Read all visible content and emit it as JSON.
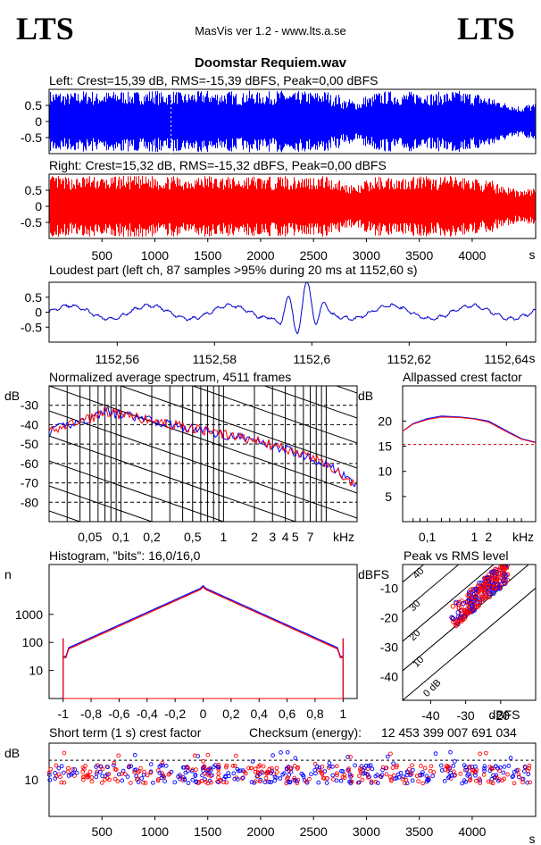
{
  "header": {
    "brand_left": "LTS",
    "brand_right": "LTS",
    "app_title": "MasVis ver 1.2 - www.lts.a.se",
    "file_name": "Doomstar Requiem.wav"
  },
  "chart_data": [
    {
      "id": "left-waveform",
      "type": "area",
      "title": "Left: Crest=15,39 dB, RMS=-15,39 dBFS, Peak=0,00 dBFS",
      "color": "#0000ff",
      "ylim": [
        -1,
        1
      ],
      "yticks": [
        "0.5",
        "0",
        "-0.5"
      ],
      "xlim": [
        0,
        4600
      ],
      "marker_x": 1152.6,
      "envelope": [
        0.95,
        0.9,
        0.92,
        0.96,
        0.9,
        0.94,
        0.97,
        0.93,
        0.95,
        0.98,
        0.92,
        0.96,
        0.9,
        0.94,
        0.97,
        0.93,
        0.95,
        0.9,
        0.96,
        0.92,
        0.94,
        0.97,
        0.9,
        0.95,
        0.93,
        0.96,
        0.85,
        0.7,
        0.65,
        0.8,
        0.92,
        0.95,
        0.9,
        0.94,
        0.97,
        0.9,
        0.93,
        0.96,
        0.92,
        0.88,
        0.8,
        0.7,
        0.6,
        0.5,
        0.55
      ]
    },
    {
      "id": "right-waveform",
      "type": "area",
      "title": "Right: Crest=15,32 dB, RMS=-15,32 dBFS, Peak=0,00 dBFS",
      "color": "#ff0000",
      "ylim": [
        -1,
        1
      ],
      "yticks": [
        "0.5",
        "0",
        "-0.5"
      ],
      "xlim": [
        0,
        4600
      ],
      "xticks": [
        "500",
        "1000",
        "1500",
        "2000",
        "2500",
        "3000",
        "3500",
        "4000"
      ],
      "xtick_values": [
        500,
        1000,
        1500,
        2000,
        2500,
        3000,
        3500,
        4000
      ],
      "xunit": "s",
      "envelope": [
        0.95,
        0.92,
        0.9,
        0.96,
        0.93,
        0.9,
        0.97,
        0.94,
        0.95,
        0.96,
        0.92,
        0.94,
        0.91,
        0.95,
        0.97,
        0.93,
        0.94,
        0.9,
        0.96,
        0.93,
        0.92,
        0.97,
        0.91,
        0.95,
        0.94,
        0.96,
        0.86,
        0.72,
        0.66,
        0.82,
        0.93,
        0.94,
        0.91,
        0.95,
        0.96,
        0.9,
        0.94,
        0.95,
        0.92,
        0.87,
        0.8,
        0.72,
        0.62,
        0.52,
        0.56
      ]
    },
    {
      "id": "loudest-part",
      "type": "line",
      "title": "Loudest part (left  ch, 87 samples >95% during 20 ms at 1152,60 s)",
      "color": "#0000cc",
      "xlim": [
        1152.546,
        1152.646
      ],
      "ylim": [
        -1,
        1
      ],
      "yticks": [
        "0.5",
        "0",
        "-0.5"
      ],
      "xticks": [
        "1152,56",
        "1152,58",
        "1152,6",
        "1152,62",
        "1152,64"
      ],
      "xtick_values": [
        1152.56,
        1152.58,
        1152.6,
        1152.62,
        1152.64
      ],
      "xunit": "s"
    },
    {
      "id": "average-spectrum",
      "type": "line",
      "title": "Normalized average spectrum, 4511 frames",
      "ylabel": "dB",
      "yticks": [
        "-30",
        "-40",
        "-50",
        "-60",
        "-70",
        "-80"
      ],
      "ytick_values": [
        -30,
        -40,
        -50,
        -60,
        -70,
        -80
      ],
      "ylim": [
        -90,
        -20
      ],
      "xticks": [
        "0,05",
        "0,1",
        "0,2",
        "0,5",
        "1",
        "2",
        "3",
        "4",
        "5",
        "7",
        "kHz"
      ],
      "xlim_khz": [
        0.02,
        20
      ],
      "series": [
        {
          "color": "#0000ff",
          "x": [
            0.02,
            0.03,
            0.05,
            0.07,
            0.1,
            0.2,
            0.5,
            1,
            2,
            5,
            10,
            20
          ],
          "y": [
            -44,
            -40,
            -37,
            -33,
            -35,
            -38,
            -42,
            -45,
            -48,
            -54,
            -60,
            -72
          ]
        },
        {
          "color": "#ff0000",
          "x": [
            0.02,
            0.03,
            0.05,
            0.07,
            0.1,
            0.2,
            0.5,
            1,
            2,
            5,
            10,
            20
          ],
          "y": [
            -44,
            -40,
            -37,
            -33,
            -35,
            -38,
            -42,
            -45,
            -48,
            -54,
            -60,
            -72
          ]
        }
      ]
    },
    {
      "id": "allpassed-crest",
      "type": "line",
      "title": "Allpassed crest factor",
      "ylabel": "dB",
      "yticks": [
        "20",
        "15",
        "10",
        "5"
      ],
      "ytick_values": [
        20,
        15,
        10,
        5
      ],
      "ylim": [
        0,
        27
      ],
      "xticks": [
        "0,1",
        "1",
        "2",
        "kHz"
      ],
      "reference_db": 15.35,
      "series": [
        {
          "color": "#0000ff",
          "x": [
            0.03,
            0.05,
            0.1,
            0.2,
            0.5,
            1,
            2,
            5,
            10,
            20
          ],
          "y": [
            18,
            19.5,
            20.5,
            21,
            20.8,
            20.5,
            20,
            18,
            16.5,
            15.8
          ]
        },
        {
          "color": "#ff0000",
          "x": [
            0.03,
            0.05,
            0.1,
            0.2,
            0.5,
            1,
            2,
            5,
            10,
            20
          ],
          "y": [
            18,
            19.4,
            20.3,
            20.8,
            20.7,
            20.4,
            19.8,
            17.8,
            16.4,
            15.7
          ]
        }
      ]
    },
    {
      "id": "histogram",
      "type": "line",
      "title": "Histogram, \"bits\": 16,0/16,0",
      "ylabel": "n",
      "yticks": [
        "1000",
        "100",
        "10"
      ],
      "ytick_values": [
        1000,
        100,
        10
      ],
      "ylim_log": [
        1,
        60000
      ],
      "xlim": [
        -1.1,
        1.1
      ],
      "xticks": [
        "-1",
        "-0,8",
        "-0,6",
        "-0,4",
        "-0,2",
        "0",
        "0,2",
        "0,4",
        "0,6",
        "0,8",
        "1"
      ],
      "xtick_values": [
        -1,
        -0.8,
        -0.6,
        -0.4,
        -0.2,
        0,
        0.2,
        0.4,
        0.6,
        0.8,
        1
      ]
    },
    {
      "id": "peak-vs-rms",
      "type": "scatter",
      "title": "Peak vs RMS level",
      "ylabel": "dBFS",
      "xlabel": "dBFS",
      "yticks": [
        "-10",
        "-20",
        "-30",
        "-40"
      ],
      "ytick_values": [
        -10,
        -20,
        -30,
        -40
      ],
      "xticks": [
        "-40",
        "-30",
        "-20"
      ],
      "xtick_values": [
        -40,
        -30,
        -20
      ],
      "xlim": [
        -48,
        -10
      ],
      "ylim": [
        -48,
        -2
      ],
      "diagonal_labels": [
        "0 dB",
        "10",
        "20",
        "30",
        "40"
      ]
    },
    {
      "id": "short-term-crest",
      "type": "scatter",
      "title": "Short term (1 s) crest factor",
      "checksum_label": "Checksum (energy):",
      "checksum_value": "12 453 399 007 691 034",
      "ylabel": "dB",
      "yticks": [
        "10"
      ],
      "ytick_values": [
        10
      ],
      "ylim": [
        0,
        20
      ],
      "xlim": [
        0,
        4600
      ],
      "xticks": [
        "500",
        "1000",
        "1500",
        "2000",
        "2500",
        "3000",
        "3500",
        "4000"
      ],
      "xtick_values": [
        500,
        1000,
        1500,
        2000,
        2500,
        3000,
        3500,
        4000
      ],
      "xunit": "s",
      "reference_db": 15.35
    }
  ]
}
